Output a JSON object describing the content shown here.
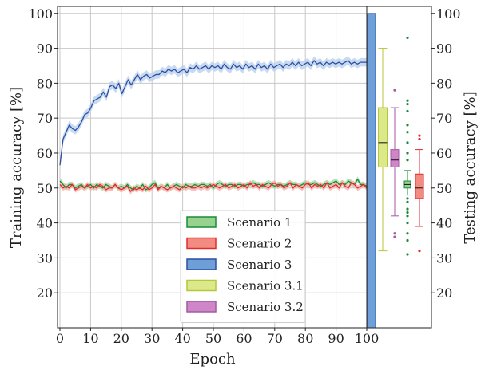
{
  "chart_data": {
    "type": "line",
    "xlabel": "Epoch",
    "ylabel_left": "Training accuracy [%]",
    "ylabel_right": "Testing accuracy [%]",
    "xlim": [
      0,
      100
    ],
    "ylim": [
      10,
      102
    ],
    "x_ticks": [
      0,
      10,
      20,
      30,
      40,
      50,
      60,
      70,
      80,
      90,
      100
    ],
    "y_ticks": [
      20,
      30,
      40,
      50,
      60,
      70,
      80,
      90,
      100
    ],
    "grid": true,
    "legend_position": "lower-center",
    "series": [
      {
        "name": "Scenario 3",
        "color": "#2f4fa0",
        "band_color": "#b9d1ef",
        "band": 1.2,
        "values": [
          56.5,
          64.0,
          66.0,
          68.0,
          67.0,
          66.5,
          67.5,
          69.0,
          71.0,
          71.5,
          73.0,
          75.0,
          75.5,
          76.0,
          77.5,
          76.0,
          79.0,
          79.5,
          78.5,
          80.0,
          77.0,
          79.0,
          81.0,
          79.5,
          81.0,
          82.5,
          81.0,
          82.0,
          82.5,
          81.5,
          82.0,
          82.5,
          82.5,
          83.5,
          83.0,
          84.0,
          83.5,
          84.0,
          83.0,
          83.5,
          84.0,
          83.0,
          84.5,
          84.0,
          85.0,
          84.0,
          84.5,
          85.0,
          84.0,
          85.0,
          84.5,
          85.0,
          84.0,
          85.5,
          84.5,
          84.0,
          85.5,
          84.5,
          85.0,
          84.0,
          85.5,
          84.5,
          85.0,
          84.0,
          85.5,
          84.5,
          85.0,
          84.0,
          85.5,
          84.5,
          85.0,
          85.5,
          84.5,
          85.5,
          85.0,
          86.0,
          85.0,
          86.0,
          85.0,
          85.5,
          86.0,
          85.0,
          86.5,
          85.5,
          86.0,
          85.0,
          86.0,
          85.5,
          86.0,
          85.5,
          86.0,
          85.5,
          86.0,
          86.5,
          85.5,
          86.0,
          85.5,
          86.0,
          86.0,
          86.0
        ]
      },
      {
        "name": "Scenario 1",
        "color": "#1a8a3a",
        "band_color": "#a6d9a3",
        "band": 0.8,
        "values": [
          52.0,
          51.0,
          50.0,
          51.0,
          51.0,
          50.0,
          50.5,
          51.0,
          50.0,
          50.5,
          51.0,
          50.0,
          51.0,
          50.5,
          50.0,
          51.0,
          50.5,
          50.0,
          51.0,
          50.0,
          50.5,
          50.0,
          51.0,
          50.0,
          49.5,
          50.5,
          50.0,
          51.0,
          49.5,
          50.0,
          51.0,
          51.5,
          50.0,
          50.5,
          50.0,
          51.0,
          50.0,
          50.5,
          51.0,
          50.5,
          50.0,
          51.0,
          50.5,
          50.5,
          51.0,
          50.5,
          51.0,
          51.0,
          50.5,
          51.0,
          50.0,
          51.0,
          51.5,
          51.0,
          50.5,
          51.0,
          51.0,
          50.5,
          51.0,
          51.0,
          50.5,
          51.0,
          51.0,
          51.5,
          51.0,
          51.0,
          50.5,
          51.0,
          51.5,
          51.0,
          50.5,
          51.0,
          51.0,
          50.5,
          51.0,
          51.5,
          51.0,
          51.0,
          50.5,
          51.0,
          51.5,
          51.0,
          51.0,
          51.5,
          51.0,
          50.5,
          51.0,
          51.5,
          51.0,
          51.5,
          52.0,
          51.0,
          51.5,
          51.0,
          52.0,
          51.5,
          51.0,
          52.5,
          51.0,
          51.0,
          50.5
        ]
      },
      {
        "name": "Scenario 2",
        "color": "#e22b2b",
        "band_color": "#f6b4ae",
        "band": 0.8,
        "values": [
          51.0,
          50.0,
          50.5,
          50.0,
          51.0,
          49.5,
          50.0,
          50.5,
          50.0,
          51.0,
          50.0,
          50.5,
          50.0,
          51.0,
          50.5,
          49.5,
          50.0,
          50.0,
          51.0,
          50.0,
          49.5,
          50.0,
          50.5,
          49.0,
          50.0,
          49.5,
          50.0,
          49.5,
          50.5,
          49.5,
          50.0,
          51.0,
          49.5,
          50.5,
          50.0,
          49.5,
          50.0,
          50.5,
          50.0,
          49.5,
          50.5,
          50.0,
          50.5,
          50.0,
          50.0,
          50.5,
          50.0,
          50.5,
          50.0,
          50.5,
          51.0,
          50.5,
          50.0,
          50.5,
          51.0,
          50.0,
          50.5,
          51.0,
          50.0,
          50.5,
          51.0,
          50.0,
          51.5,
          50.5,
          51.0,
          50.0,
          51.0,
          50.5,
          50.0,
          51.0,
          51.5,
          50.5,
          51.0,
          50.0,
          50.5,
          51.5,
          50.0,
          51.0,
          50.5,
          50.0,
          51.0,
          51.5,
          50.0,
          51.0,
          50.5,
          51.0,
          50.0,
          51.5,
          50.0,
          50.5,
          51.0,
          50.0,
          51.5,
          50.5,
          50.0,
          51.5,
          51.0,
          50.0,
          50.5,
          51.0,
          50.0
        ]
      }
    ],
    "test_bar": {
      "series": "Scenario 3",
      "value": 100,
      "color": "#6f9fd8"
    },
    "boxplots": [
      {
        "series": "Scenario 3.1",
        "color": "#dbe98a",
        "edge": "#b6c63a",
        "whisker_low": 32,
        "q1": 56,
        "median": 63,
        "q3": 73,
        "whisker_high": 90,
        "outliers": []
      },
      {
        "series": "Scenario 3.2",
        "color": "#cf86c8",
        "edge": "#a45aa0",
        "whisker_low": 42,
        "q1": 56,
        "median": 58,
        "q3": 61,
        "whisker_high": 73,
        "outliers": [
          78,
          37,
          36
        ]
      },
      {
        "series": "Scenario 1",
        "color": "#97d28f",
        "edge": "#1a8a3a",
        "whisker_low": 48,
        "q1": 50,
        "median": 51,
        "q3": 52,
        "whisker_high": 55,
        "outliers": [
          93,
          75,
          74,
          72,
          68,
          66,
          63,
          60,
          58,
          47,
          46,
          44,
          43,
          42,
          40,
          37,
          35,
          31
        ]
      },
      {
        "series": "Scenario 2",
        "color": "#f28c83",
        "edge": "#e22b2b",
        "whisker_low": 39,
        "q1": 47,
        "median": 50,
        "q3": 54,
        "whisker_high": 61,
        "outliers": [
          65,
          64,
          32
        ]
      }
    ],
    "legend": [
      {
        "label": "Scenario 1",
        "color": "#97d28f",
        "edge": "#1a8a3a"
      },
      {
        "label": "Scenario 2",
        "color": "#f28c83",
        "edge": "#e22b2b"
      },
      {
        "label": "Scenario 3",
        "color": "#6f9fd8",
        "edge": "#2f4fa0"
      },
      {
        "label": "Scenario 3.1",
        "color": "#dbe98a",
        "edge": "#b6c63a"
      },
      {
        "label": "Scenario 3.2",
        "color": "#cf86c8",
        "edge": "#a45aa0"
      }
    ]
  }
}
